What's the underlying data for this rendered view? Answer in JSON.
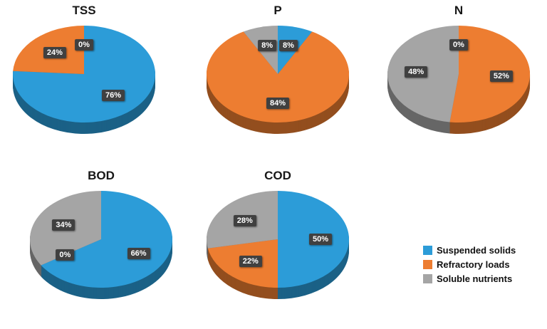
{
  "chart_config": {
    "style": "pie-3d",
    "start_angle": "top",
    "direction": "clockwise",
    "colors": [
      "#2C9CD8",
      "#ED7D31",
      "#A5A5A5"
    ],
    "depth_shade": 0.62,
    "label_bg": "#404040",
    "label_text_color": "#ffffff",
    "legend_position": "bottom-right"
  },
  "chart_data": [
    {
      "type": "pie",
      "title": "TSS",
      "categories": [
        "Suspended solids",
        "Refractory loads",
        "Soluble nutrients"
      ],
      "values": [
        76,
        24,
        0
      ],
      "labels": [
        "76%",
        "24%",
        "0%"
      ],
      "unit": "%"
    },
    {
      "type": "pie",
      "title": "P",
      "categories": [
        "Suspended solids",
        "Refractory loads",
        "Soluble nutrients"
      ],
      "values": [
        8,
        84,
        8
      ],
      "labels": [
        "8%",
        "84%",
        "8%"
      ],
      "unit": "%"
    },
    {
      "type": "pie",
      "title": "N",
      "categories": [
        "Suspended solids",
        "Refractory loads",
        "Soluble nutrients"
      ],
      "values": [
        0,
        52,
        48
      ],
      "labels": [
        "0%",
        "52%",
        "48%"
      ],
      "unit": "%"
    },
    {
      "type": "pie",
      "title": "BOD",
      "categories": [
        "Suspended solids",
        "Refractory loads",
        "Soluble nutrients"
      ],
      "values": [
        66,
        0,
        34
      ],
      "labels": [
        "66%",
        "0%",
        "34%"
      ],
      "unit": "%"
    },
    {
      "type": "pie",
      "title": "COD",
      "categories": [
        "Suspended solids",
        "Refractory loads",
        "Soluble nutrients"
      ],
      "values": [
        50,
        22,
        28
      ],
      "labels": [
        "50%",
        "22%",
        "28%"
      ],
      "unit": "%"
    }
  ],
  "legend": {
    "items": [
      {
        "label": "Suspended solids",
        "color": "#2C9CD8"
      },
      {
        "label": "Refractory loads",
        "color": "#ED7D31"
      },
      {
        "label": "Soluble nutrients",
        "color": "#A5A5A5"
      }
    ]
  }
}
